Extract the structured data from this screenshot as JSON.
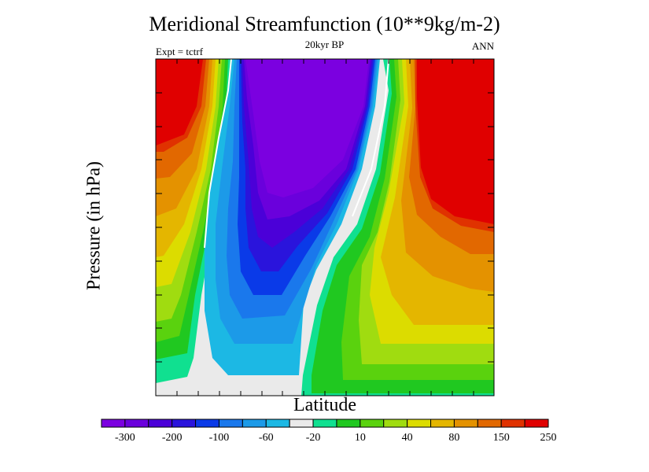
{
  "chart_data": {
    "type": "heatmap",
    "title": "Meridional Streamfunction (10**9kg/m-2)",
    "subtitle": "20kyr BP",
    "left_label": "Expt = tctrf",
    "right_label": "ANN",
    "xlabel": "Latitude",
    "ylabel": "Pressure (in hPa)",
    "colorbar": {
      "colors": [
        "#7b00e0",
        "#6a00dc",
        "#4b00d8",
        "#2a14dc",
        "#0a3ae8",
        "#1a78ec",
        "#1c9ae8",
        "#1cb8e4",
        "#eaeaea",
        "#10e090",
        "#20c820",
        "#5ad20e",
        "#a0dc10",
        "#dcdc00",
        "#e4b600",
        "#e49200",
        "#e26800",
        "#e03200",
        "#e00000"
      ],
      "tick_labels": [
        "-300",
        "-200",
        "-100",
        "-60",
        "-20",
        "10",
        "40",
        "80",
        "150",
        "250"
      ]
    }
  }
}
